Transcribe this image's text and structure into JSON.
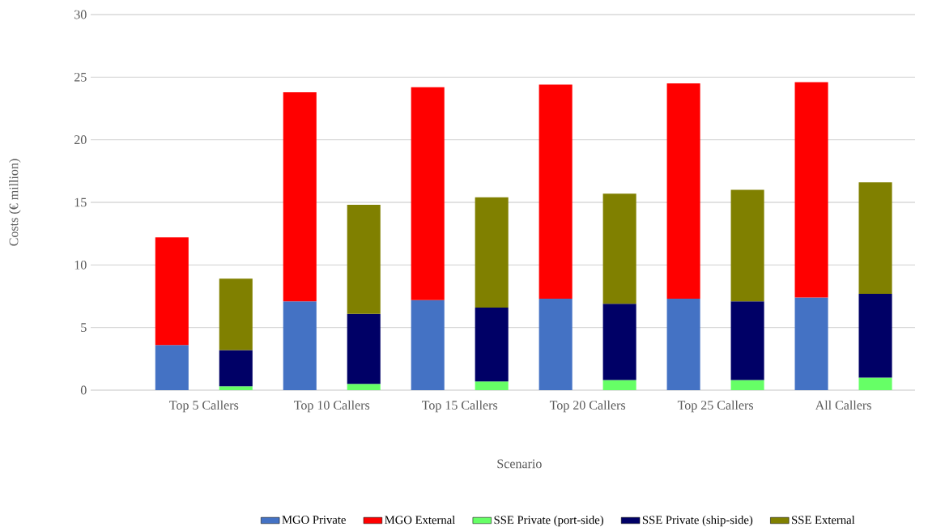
{
  "chart_data": {
    "type": "bar",
    "stacked": true,
    "xlabel": "Scenario",
    "ylabel": "Costs (€ million)",
    "categories": [
      "Top 5 Callers",
      null,
      "Top 10 Callers",
      null,
      "Top 15 Callers",
      null,
      "Top 20 Callers",
      null,
      "Top 25 Callers",
      null,
      "All Callers",
      null
    ],
    "series": [
      {
        "name": "MGO Private",
        "color": "#4472c4",
        "values": [
          3.6,
          null,
          7.1,
          null,
          7.2,
          null,
          7.3,
          null,
          7.3,
          null,
          7.4,
          null
        ]
      },
      {
        "name": "MGO External",
        "color": "#ff0000",
        "values": [
          8.6,
          null,
          16.7,
          null,
          17.0,
          null,
          17.1,
          null,
          17.2,
          null,
          17.2,
          null
        ]
      },
      {
        "name": "SSE Private (port-side)",
        "color": "#66ff66",
        "values": [
          null,
          0.3,
          null,
          0.5,
          null,
          0.7,
          null,
          0.8,
          null,
          0.8,
          null,
          1.0
        ]
      },
      {
        "name": "SSE Private (ship-side)",
        "color": "#000066",
        "values": [
          null,
          2.9,
          null,
          5.6,
          null,
          5.9,
          null,
          6.1,
          null,
          6.3,
          null,
          6.7
        ]
      },
      {
        "name": "SSE External",
        "color": "#808000",
        "values": [
          null,
          5.7,
          null,
          8.7,
          null,
          8.8,
          null,
          8.8,
          null,
          8.9,
          null,
          8.9
        ]
      }
    ],
    "ylim": [
      0,
      30
    ],
    "yticks": [
      0,
      5,
      10,
      15,
      20,
      25,
      30
    ],
    "grid": "y",
    "legend": "bottom"
  }
}
